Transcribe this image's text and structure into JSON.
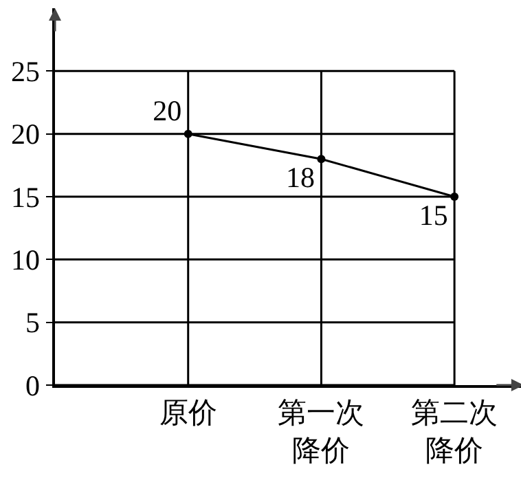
{
  "chart_data": {
    "type": "line",
    "categories": [
      null,
      "原价",
      "第一次降价",
      "第二次降价"
    ],
    "series": [
      {
        "color": "#000000",
        "values": [
          null,
          20,
          18,
          15
        ]
      }
    ],
    "ylim": [
      0,
      30
    ],
    "yticks": [
      0,
      5,
      10,
      15,
      20,
      25
    ],
    "grid": true,
    "marker": "circle",
    "line_style": "solid",
    "data_labels": true,
    "legend": false
  }
}
